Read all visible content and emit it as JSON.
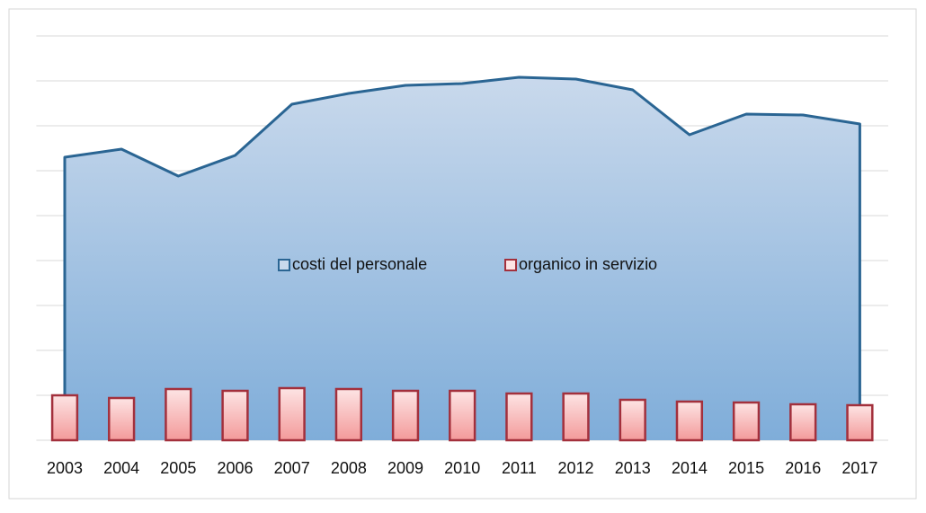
{
  "chart_data": {
    "type": "combo",
    "categories": [
      "2003",
      "2004",
      "2005",
      "2006",
      "2007",
      "2008",
      "2009",
      "2010",
      "2011",
      "2012",
      "2013",
      "2014",
      "2015",
      "2016",
      "2017"
    ],
    "series": [
      {
        "name": "costi del personale",
        "type": "area",
        "color": "#2a6593",
        "values": [
          6.3,
          6.48,
          5.88,
          6.34,
          7.48,
          7.72,
          7.9,
          7.94,
          8.08,
          8.04,
          7.8,
          6.8,
          7.26,
          7.24,
          7.04
        ]
      },
      {
        "name": "organico in servizio",
        "type": "bar",
        "color": "#a3303c",
        "values": [
          1.0,
          0.94,
          1.14,
          1.1,
          1.16,
          1.14,
          1.1,
          1.1,
          1.04,
          1.04,
          0.9,
          0.86,
          0.84,
          0.8,
          0.78
        ]
      }
    ],
    "ylim": [
      0,
      9
    ],
    "yticks": [
      0,
      1,
      2,
      3,
      4,
      5,
      6,
      7,
      8,
      9
    ],
    "grid": true
  }
}
